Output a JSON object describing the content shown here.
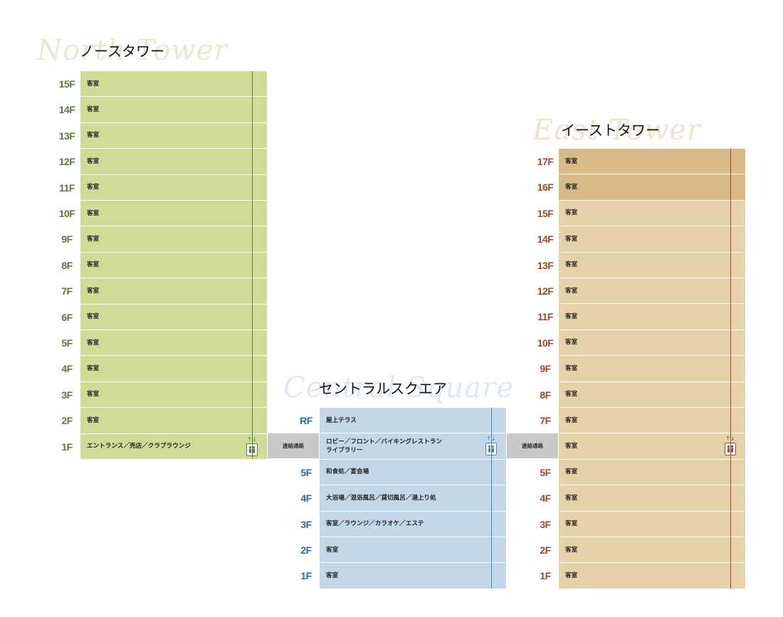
{
  "colors": {
    "north_fill": "#d0db98",
    "north_text": "#5a7a3e",
    "north_script": "#e6ebcf",
    "north_shaft": "#5a7a3e",
    "central_fill": "#c4d7e9",
    "central_text": "#2e6b93",
    "central_script": "#dde8f2",
    "central_shaft": "#4b86b0",
    "east_fill": "#e6d2aa",
    "east_fill_dark": "#d9b985",
    "east_text": "#9a4a2e",
    "east_script": "#f0e2cc",
    "east_shaft": "#9a4a2e",
    "connector": "#c9c9c9"
  },
  "north": {
    "script_title": "North Tower",
    "title": "ノースタワー",
    "floors": [
      {
        "floor": "15F",
        "label": "客室"
      },
      {
        "floor": "14F",
        "label": "客室"
      },
      {
        "floor": "13F",
        "label": "客室"
      },
      {
        "floor": "12F",
        "label": "客室"
      },
      {
        "floor": "11F",
        "label": "客室"
      },
      {
        "floor": "10F",
        "label": "客室"
      },
      {
        "floor": "9F",
        "label": "客室"
      },
      {
        "floor": "8F",
        "label": "客室"
      },
      {
        "floor": "7F",
        "label": "客室"
      },
      {
        "floor": "6F",
        "label": "客室"
      },
      {
        "floor": "5F",
        "label": "客室"
      },
      {
        "floor": "4F",
        "label": "客室"
      },
      {
        "floor": "3F",
        "label": "客室"
      },
      {
        "floor": "2F",
        "label": "客室"
      },
      {
        "floor": "1F",
        "label": "エントランス／売店／クラブラウンジ",
        "elevator": true
      }
    ]
  },
  "central": {
    "script_title": "Central Square",
    "title": "セントラルスクエア",
    "floors": [
      {
        "floor": "RF",
        "label": "屋上テラス"
      },
      {
        "floor": "6F",
        "label": "ロビー／フロント／バイキングレストラン\nライブラリー",
        "elevator": true
      },
      {
        "floor": "5F",
        "label": "和食処／宴会場"
      },
      {
        "floor": "4F",
        "label": "大浴場／混浴風呂／貸切風呂／湯上り処"
      },
      {
        "floor": "3F",
        "label": "客室／ラウンジ／カラオケ／エステ"
      },
      {
        "floor": "2F",
        "label": "客室"
      },
      {
        "floor": "1F",
        "label": "客室"
      }
    ]
  },
  "east": {
    "script_title": "East Tower",
    "title": "イーストタワー",
    "floors": [
      {
        "floor": "17F",
        "label": "客室",
        "dark": true
      },
      {
        "floor": "16F",
        "label": "客室",
        "dark": true
      },
      {
        "floor": "15F",
        "label": "客室"
      },
      {
        "floor": "14F",
        "label": "客室"
      },
      {
        "floor": "13F",
        "label": "客室"
      },
      {
        "floor": "12F",
        "label": "客室"
      },
      {
        "floor": "11F",
        "label": "客室"
      },
      {
        "floor": "10F",
        "label": "客室"
      },
      {
        "floor": "9F",
        "label": "客室"
      },
      {
        "floor": "8F",
        "label": "客室"
      },
      {
        "floor": "7F",
        "label": "客室"
      },
      {
        "floor": "6F",
        "label": "客室",
        "elevator": true
      },
      {
        "floor": "5F",
        "label": "客室"
      },
      {
        "floor": "4F",
        "label": "客室"
      },
      {
        "floor": "3F",
        "label": "客室"
      },
      {
        "floor": "2F",
        "label": "客室"
      },
      {
        "floor": "1F",
        "label": "客室"
      }
    ]
  },
  "connectors": [
    {
      "label": "連絡通路"
    },
    {
      "label": "連絡通路"
    }
  ],
  "icons": {
    "elevator": "elevator-icon",
    "arrows": "↑↓",
    "person": "👥"
  }
}
